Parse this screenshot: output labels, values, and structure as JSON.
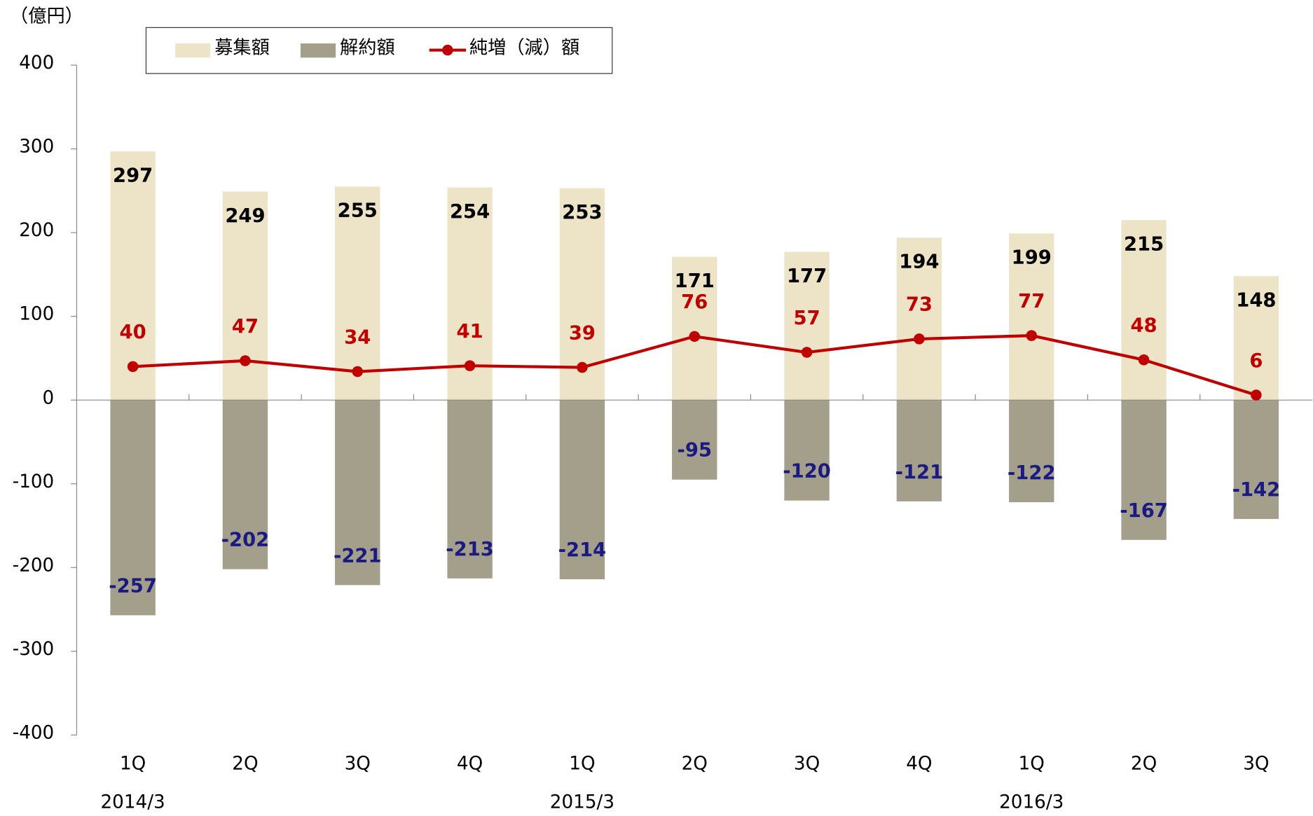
{
  "chart_data": {
    "type": "bar",
    "unit_label": "（億円）",
    "categories": [
      "1Q",
      "2Q",
      "3Q",
      "4Q",
      "1Q",
      "2Q",
      "3Q",
      "4Q",
      "1Q",
      "2Q",
      "3Q"
    ],
    "x_groups": [
      "2014/3",
      null,
      null,
      null,
      "2015/3",
      null,
      null,
      null,
      "2016/3",
      null,
      null
    ],
    "series": [
      {
        "name": "募集額",
        "type": "bar",
        "color": "#ede4c8",
        "label_color": "#000000",
        "values": [
          297,
          249,
          255,
          254,
          253,
          171,
          177,
          194,
          199,
          215,
          148
        ]
      },
      {
        "name": "解約額",
        "type": "bar",
        "color": "#a39f8a",
        "label_color": "#1a1a80",
        "values": [
          -257,
          -202,
          -221,
          -213,
          -214,
          -95,
          -120,
          -121,
          -122,
          -167,
          -142
        ]
      },
      {
        "name": "純増（減）額",
        "type": "line",
        "color": "#c00000",
        "label_color": "#c00000",
        "values": [
          40,
          47,
          34,
          41,
          39,
          76,
          57,
          73,
          77,
          48,
          6
        ]
      }
    ],
    "ylim": [
      -400,
      400
    ],
    "yticks": [
      -400,
      -300,
      -200,
      -100,
      0,
      100,
      200,
      300,
      400
    ],
    "legend": "top"
  }
}
